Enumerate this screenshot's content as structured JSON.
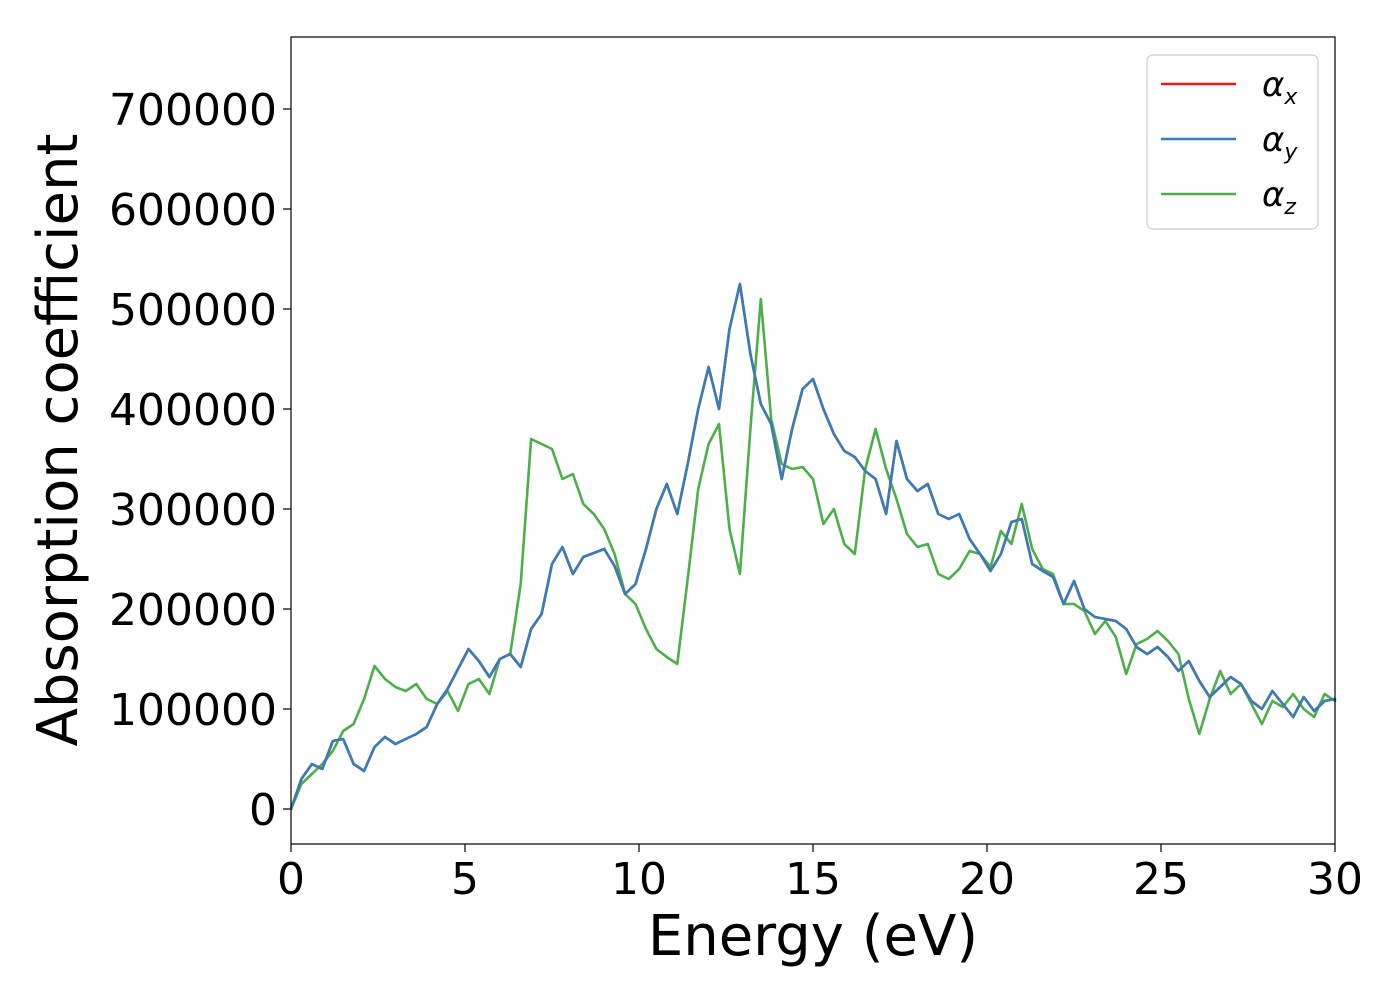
{
  "chart_data": {
    "type": "line",
    "xlabel": "Energy (eV)",
    "ylabel": "Absorption coefficient",
    "xlim": [
      0,
      30
    ],
    "ylim": [
      -35000,
      772000
    ],
    "xticks": [
      0,
      5,
      10,
      15,
      20,
      25,
      30
    ],
    "xtick_labels": [
      "0",
      "5",
      "10",
      "15",
      "20",
      "25",
      "30"
    ],
    "yticks": [
      0,
      100000,
      200000,
      300000,
      400000,
      500000,
      600000,
      700000
    ],
    "ytick_labels": [
      "0",
      "100000",
      "200000",
      "300000",
      "400000",
      "500000",
      "600000",
      "700000"
    ],
    "grid": false,
    "legend": "top-right",
    "series": [
      {
        "name": "αx",
        "base": "α",
        "sub": "x",
        "color": "#e41a1c",
        "x": [
          0,
          0.3,
          0.6,
          0.9,
          1.2,
          1.5,
          1.8,
          2.1,
          2.4,
          2.7,
          3.0,
          3.3,
          3.6,
          3.9,
          4.2,
          4.5,
          4.8,
          5.1,
          5.4,
          5.7,
          6.0,
          6.3,
          6.6,
          6.9,
          7.2,
          7.5,
          7.8,
          8.1,
          8.4,
          8.7,
          9.0,
          9.3,
          9.6,
          9.9,
          10.2,
          10.5,
          10.8,
          11.1,
          11.4,
          11.7,
          12.0,
          12.3,
          12.6,
          12.9,
          13.2,
          13.5,
          13.8,
          14.1,
          14.4,
          14.7,
          15.0,
          15.3,
          15.6,
          15.9,
          16.2,
          16.5,
          16.8,
          17.1,
          17.4,
          17.7,
          18.0,
          18.3,
          18.6,
          18.9,
          19.2,
          19.5,
          19.8,
          20.1,
          20.4,
          20.7,
          21.0,
          21.3,
          21.6,
          21.9,
          22.2,
          22.5,
          22.8,
          23.1,
          23.4,
          23.7,
          24.0,
          24.3,
          24.6,
          24.9,
          25.2,
          25.5,
          25.8,
          26.1,
          26.4,
          26.7,
          27.0,
          27.3,
          27.6,
          27.9,
          28.2,
          28.5,
          28.8,
          29.1,
          29.4,
          29.7,
          30.0
        ],
        "y": [
          0,
          30000,
          45000,
          40000,
          68000,
          70000,
          45000,
          38000,
          62000,
          72000,
          65000,
          70000,
          75000,
          82000,
          105000,
          120000,
          140000,
          160000,
          148000,
          132000,
          150000,
          155000,
          142000,
          180000,
          195000,
          245000,
          262000,
          235000,
          252000,
          256000,
          260000,
          243000,
          215000,
          225000,
          260000,
          300000,
          325000,
          295000,
          345000,
          400000,
          442000,
          400000,
          480000,
          525000,
          455000,
          405000,
          385000,
          330000,
          380000,
          420000,
          430000,
          400000,
          375000,
          358000,
          352000,
          338000,
          330000,
          295000,
          368000,
          330000,
          318000,
          325000,
          295000,
          290000,
          295000,
          270000,
          255000,
          238000,
          255000,
          287000,
          290000,
          245000,
          238000,
          232000,
          205000,
          228000,
          200000,
          192000,
          190000,
          188000,
          180000,
          162000,
          155000,
          162000,
          152000,
          138000,
          148000,
          128000,
          112000,
          122000,
          132000,
          125000,
          108000,
          100000,
          118000,
          105000,
          92000,
          112000,
          98000,
          108000,
          110000
        ]
      },
      {
        "name": "αy",
        "base": "α",
        "sub": "y",
        "color": "#377eb8",
        "x": [
          0,
          0.3,
          0.6,
          0.9,
          1.2,
          1.5,
          1.8,
          2.1,
          2.4,
          2.7,
          3.0,
          3.3,
          3.6,
          3.9,
          4.2,
          4.5,
          4.8,
          5.1,
          5.4,
          5.7,
          6.0,
          6.3,
          6.6,
          6.9,
          7.2,
          7.5,
          7.8,
          8.1,
          8.4,
          8.7,
          9.0,
          9.3,
          9.6,
          9.9,
          10.2,
          10.5,
          10.8,
          11.1,
          11.4,
          11.7,
          12.0,
          12.3,
          12.6,
          12.9,
          13.2,
          13.5,
          13.8,
          14.1,
          14.4,
          14.7,
          15.0,
          15.3,
          15.6,
          15.9,
          16.2,
          16.5,
          16.8,
          17.1,
          17.4,
          17.7,
          18.0,
          18.3,
          18.6,
          18.9,
          19.2,
          19.5,
          19.8,
          20.1,
          20.4,
          20.7,
          21.0,
          21.3,
          21.6,
          21.9,
          22.2,
          22.5,
          22.8,
          23.1,
          23.4,
          23.7,
          24.0,
          24.3,
          24.6,
          24.9,
          25.2,
          25.5,
          25.8,
          26.1,
          26.4,
          26.7,
          27.0,
          27.3,
          27.6,
          27.9,
          28.2,
          28.5,
          28.8,
          29.1,
          29.4,
          29.7,
          30.0
        ],
        "y": [
          0,
          30000,
          45000,
          40000,
          68000,
          70000,
          45000,
          38000,
          62000,
          72000,
          65000,
          70000,
          75000,
          82000,
          105000,
          120000,
          140000,
          160000,
          148000,
          132000,
          150000,
          155000,
          142000,
          180000,
          195000,
          245000,
          262000,
          235000,
          252000,
          256000,
          260000,
          243000,
          215000,
          225000,
          260000,
          300000,
          325000,
          295000,
          345000,
          400000,
          442000,
          400000,
          480000,
          525000,
          455000,
          405000,
          385000,
          330000,
          380000,
          420000,
          430000,
          400000,
          375000,
          358000,
          352000,
          338000,
          330000,
          295000,
          368000,
          330000,
          318000,
          325000,
          295000,
          290000,
          295000,
          270000,
          255000,
          238000,
          255000,
          287000,
          290000,
          245000,
          238000,
          232000,
          205000,
          228000,
          200000,
          192000,
          190000,
          188000,
          180000,
          162000,
          155000,
          162000,
          152000,
          138000,
          148000,
          128000,
          112000,
          122000,
          132000,
          125000,
          108000,
          100000,
          118000,
          105000,
          92000,
          112000,
          98000,
          108000,
          110000
        ]
      },
      {
        "name": "αz",
        "base": "α",
        "sub": "z",
        "color": "#4daf4a",
        "x": [
          0,
          0.3,
          0.6,
          0.9,
          1.2,
          1.5,
          1.8,
          2.1,
          2.4,
          2.7,
          3.0,
          3.3,
          3.6,
          3.9,
          4.2,
          4.5,
          4.8,
          5.1,
          5.4,
          5.7,
          6.0,
          6.3,
          6.6,
          6.9,
          7.2,
          7.5,
          7.8,
          8.1,
          8.4,
          8.7,
          9.0,
          9.3,
          9.6,
          9.9,
          10.2,
          10.5,
          10.8,
          11.1,
          11.4,
          11.7,
          12.0,
          12.3,
          12.6,
          12.9,
          13.2,
          13.5,
          13.8,
          14.1,
          14.4,
          14.7,
          15.0,
          15.3,
          15.6,
          15.9,
          16.2,
          16.5,
          16.8,
          17.1,
          17.4,
          17.7,
          18.0,
          18.3,
          18.6,
          18.9,
          19.2,
          19.5,
          19.8,
          20.1,
          20.4,
          20.7,
          21.0,
          21.3,
          21.6,
          21.9,
          22.2,
          22.5,
          22.8,
          23.1,
          23.4,
          23.7,
          24.0,
          24.3,
          24.6,
          24.9,
          25.2,
          25.5,
          25.8,
          26.1,
          26.4,
          26.7,
          27.0,
          27.3,
          27.6,
          27.9,
          28.2,
          28.5,
          28.8,
          29.1,
          29.4,
          29.7,
          30.0
        ],
        "y": [
          0,
          25000,
          35000,
          45000,
          58000,
          78000,
          85000,
          110000,
          143000,
          130000,
          122000,
          118000,
          125000,
          110000,
          105000,
          118000,
          98000,
          125000,
          130000,
          115000,
          150000,
          155000,
          225000,
          370000,
          365000,
          360000,
          330000,
          335000,
          305000,
          295000,
          280000,
          255000,
          215000,
          205000,
          180000,
          160000,
          152000,
          145000,
          230000,
          320000,
          365000,
          385000,
          280000,
          235000,
          380000,
          510000,
          390000,
          345000,
          340000,
          342000,
          330000,
          285000,
          300000,
          265000,
          255000,
          340000,
          380000,
          340000,
          310000,
          275000,
          262000,
          265000,
          235000,
          230000,
          240000,
          258000,
          255000,
          242000,
          278000,
          265000,
          305000,
          260000,
          240000,
          235000,
          205000,
          205000,
          198000,
          175000,
          188000,
          172000,
          135000,
          165000,
          170000,
          178000,
          168000,
          155000,
          110000,
          75000,
          110000,
          138000,
          115000,
          125000,
          105000,
          85000,
          108000,
          102000,
          115000,
          100000,
          92000,
          115000,
          108000
        ]
      }
    ]
  }
}
